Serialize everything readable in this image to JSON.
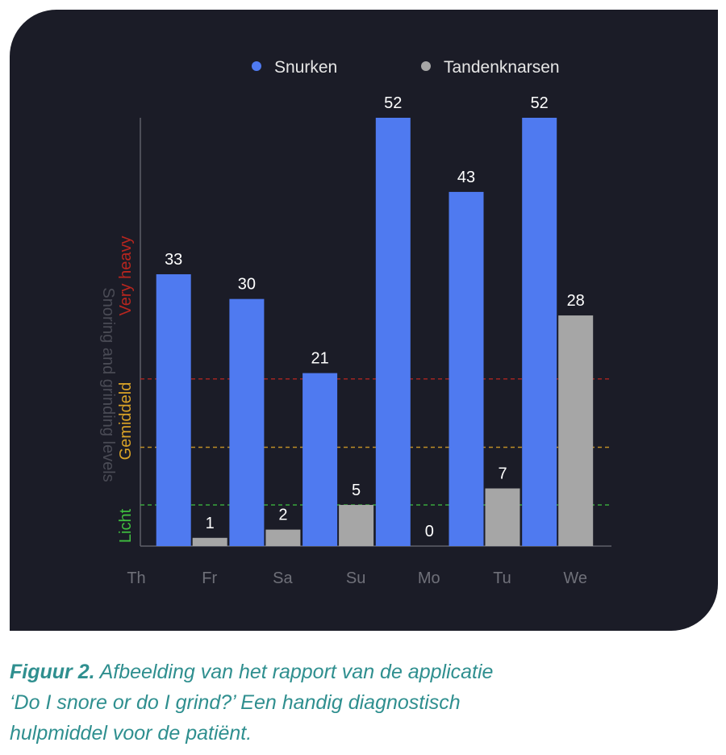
{
  "chart_data": {
    "type": "bar",
    "categories": [
      "Th",
      "Fr",
      "Sa",
      "Su",
      "Mo",
      "Tu",
      "We"
    ],
    "series": [
      {
        "name": "Snurken",
        "color": "#4f7af0",
        "values": [
          null,
          33,
          30,
          21,
          52,
          43,
          52
        ]
      },
      {
        "name": "Tandenknarsen",
        "color": "#a6a6a6",
        "values": [
          null,
          1,
          2,
          5,
          0,
          7,
          28
        ]
      }
    ],
    "ylabel": "Snoring and grinding levels",
    "ylim": [
      0,
      52
    ],
    "legend": "top-center",
    "grid": false,
    "thresholds": [
      {
        "label": "Licht",
        "value": 5,
        "color": "#3fbf3f"
      },
      {
        "label": "Gemiddeld",
        "value": 12,
        "color": "#d9a227"
      },
      {
        "label": "Very heavy",
        "value": 20.3,
        "color": "#b8261f"
      }
    ]
  },
  "caption": {
    "lead": "Figuur 2.",
    "line1": "Afbeelding van het rapport van de applicatie",
    "line2": "‘Do I snore or do I grind?’ Een handig diagnostisch",
    "line3": "hulpmiddel voor de patiënt."
  }
}
